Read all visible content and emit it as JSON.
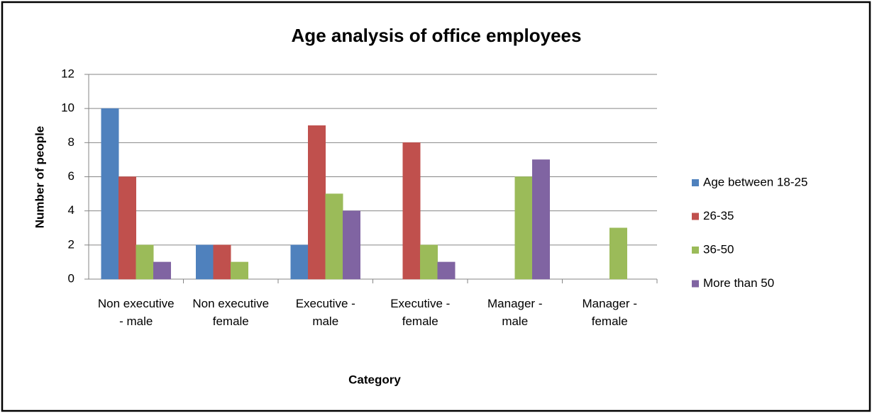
{
  "chart_data": {
    "type": "bar",
    "title": "Age analysis of office employees",
    "x_label": "Category",
    "y_label": "Number of people",
    "categories": [
      "Non executive - male",
      "Non executive female",
      "Executive - male",
      "Executive - female",
      "Manager - male",
      "Manager - female"
    ],
    "series": [
      {
        "name": "Age between 18-25",
        "color": "#4f81bd",
        "values": [
          10,
          2,
          2,
          0,
          0,
          0
        ]
      },
      {
        "name": "26-35",
        "color": "#c0504d",
        "values": [
          6,
          2,
          9,
          8,
          0,
          0
        ]
      },
      {
        "name": "36-50",
        "color": "#9bbb59",
        "values": [
          2,
          1,
          5,
          2,
          6,
          3
        ]
      },
      {
        "name": "More than 50",
        "color": "#8064a2",
        "values": [
          1,
          0,
          4,
          1,
          7,
          0
        ]
      }
    ],
    "ylim": [
      0,
      12
    ],
    "yticks": [
      0,
      2,
      4,
      6,
      8,
      10,
      12
    ],
    "grid": true,
    "legend": "right"
  }
}
